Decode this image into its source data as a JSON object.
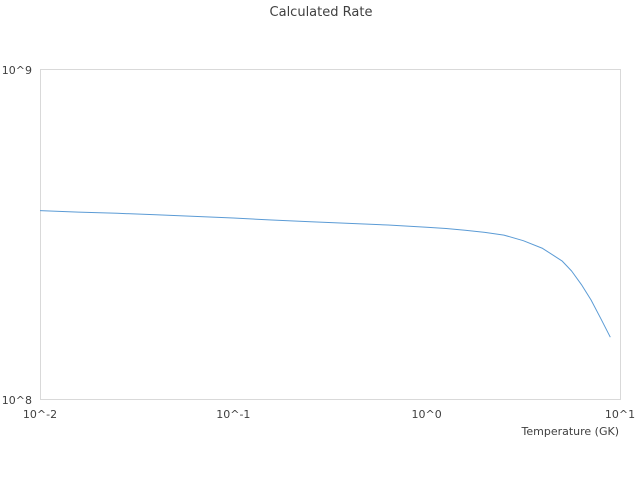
{
  "chart_data": {
    "type": "line",
    "title": "Calculated Rate",
    "xlabel": "Temperature (GK)",
    "ylabel": "",
    "x_scale": "log",
    "y_scale": "log",
    "xlim": [
      0.01,
      10
    ],
    "ylim": [
      100000000,
      1000000000
    ],
    "x_tick_labels": [
      "10^-2",
      "10^-1",
      "10^0",
      "10^1"
    ],
    "y_tick_labels": [
      "10^8",
      "10^9"
    ],
    "grid": false,
    "legend": "none",
    "colors": {
      "series": "#5b9bd5",
      "frame": "#d9d9d9",
      "text": "#404040"
    },
    "series": [
      {
        "x": [
          0.01,
          0.0158,
          0.0251,
          0.0398,
          0.0631,
          0.1,
          0.158,
          0.251,
          0.398,
          0.631,
          1.0,
          1.26,
          1.58,
          2.0,
          2.51,
          3.16,
          3.98,
          5.01,
          5.62,
          6.31,
          7.08,
          7.94,
          8.91
        ],
        "y": [
          375000000,
          371000000,
          368000000,
          364000000,
          360000000,
          356000000,
          351000000,
          347000000,
          343000000,
          339000000,
          334000000,
          331000000,
          327000000,
          322000000,
          316000000,
          304000000,
          288000000,
          264000000,
          246000000,
          224000000,
          201000000,
          177000000,
          155000000
        ]
      }
    ]
  }
}
